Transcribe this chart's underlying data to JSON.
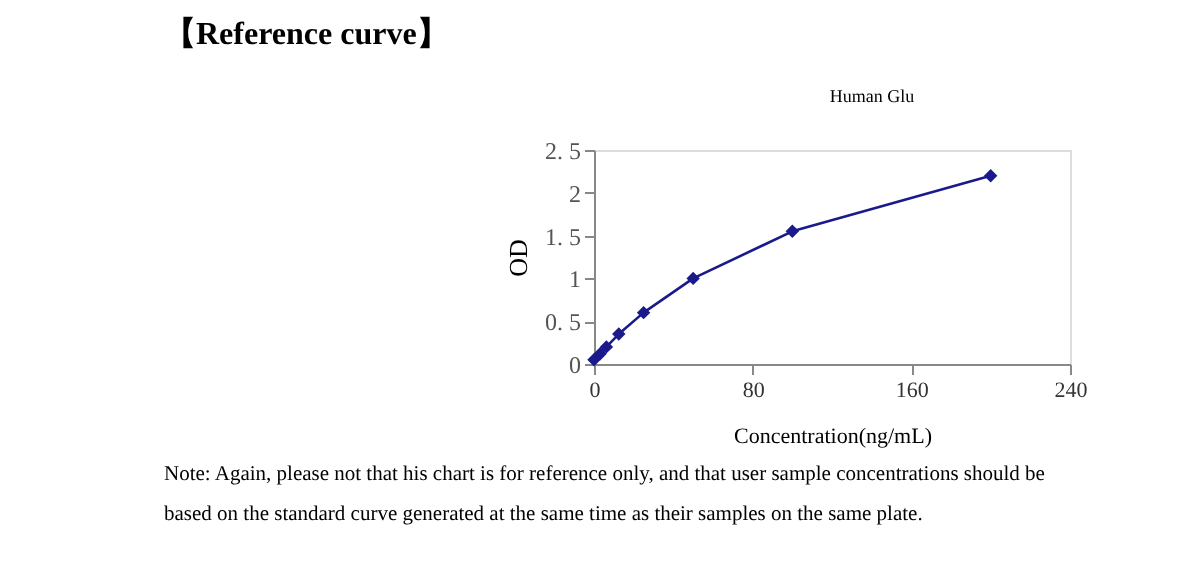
{
  "chart_data": {
    "type": "line",
    "title": "Human Glu",
    "xlabel": "Concentration(ng/mL)",
    "ylabel": "OD",
    "x": [
      0,
      3.12,
      6.25,
      12.5,
      25,
      50,
      100,
      200
    ],
    "series": [
      {
        "color": "#1a1a8c",
        "values": [
          0.05,
          0.12,
          0.2,
          0.35,
          0.6,
          1.0,
          1.55,
          2.2
        ]
      }
    ],
    "xlim": [
      0,
      240
    ],
    "xticks": [
      0,
      80,
      160,
      240
    ],
    "ylim": [
      0,
      2.5
    ],
    "yticks": [
      0,
      {
        "value": 0.5,
        "label": "0. 5"
      },
      1,
      {
        "value": 1.5,
        "label": "1. 5"
      },
      2,
      {
        "value": 2.5,
        "label": "2. 5"
      }
    ],
    "grid": false,
    "legend": false,
    "marker": "diamond",
    "line_style": "solid",
    "annotations": [
      "【Reference curve】",
      "Note: Again, please not that his chart is for reference only, and that user sample concentrations should be based on the standard curve generated at the same time as their samples on the same plate."
    ]
  }
}
